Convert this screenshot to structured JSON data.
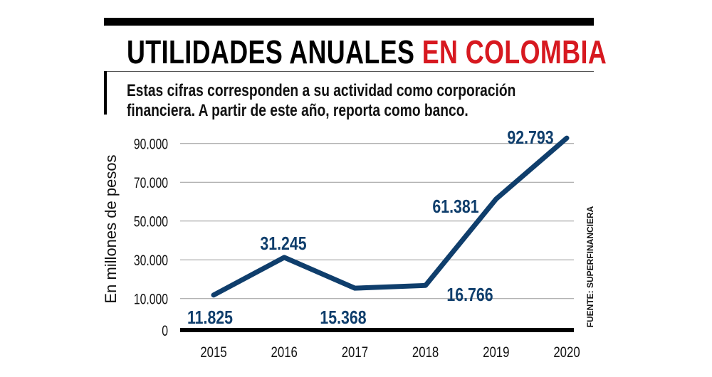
{
  "header": {
    "title_black": "UTILIDADES ANUALES",
    "title_red": "EN COLOMBIA",
    "subtitle_line1": "Estas cifras corresponden a su actividad como corporación",
    "subtitle_line2": "financiera. A partir de este año, reporta como banco."
  },
  "source": "FUENTE: SUPERFINANCIERA",
  "colors": {
    "line": "#0f3e6c",
    "accent": "#d71920"
  },
  "chart_data": {
    "type": "line",
    "title": "UTILIDADES ANUALES EN COLOMBIA",
    "xlabel": "",
    "ylabel": "En millones de pesos",
    "categories": [
      "2015",
      "2016",
      "2017",
      "2018",
      "2019",
      "2020"
    ],
    "values": [
      11825,
      31245,
      15368,
      16766,
      61381,
      92793
    ],
    "data_labels": [
      "11.825",
      "31.245",
      "15.368",
      "16.766",
      "61.381",
      "92.793"
    ],
    "yticks": [
      0,
      10000,
      30000,
      50000,
      70000,
      90000
    ],
    "ytick_labels": [
      "0",
      "10.000",
      "30.000",
      "50.000",
      "70.000",
      "90.000"
    ],
    "ylim": [
      0,
      95000
    ],
    "grid": true
  }
}
